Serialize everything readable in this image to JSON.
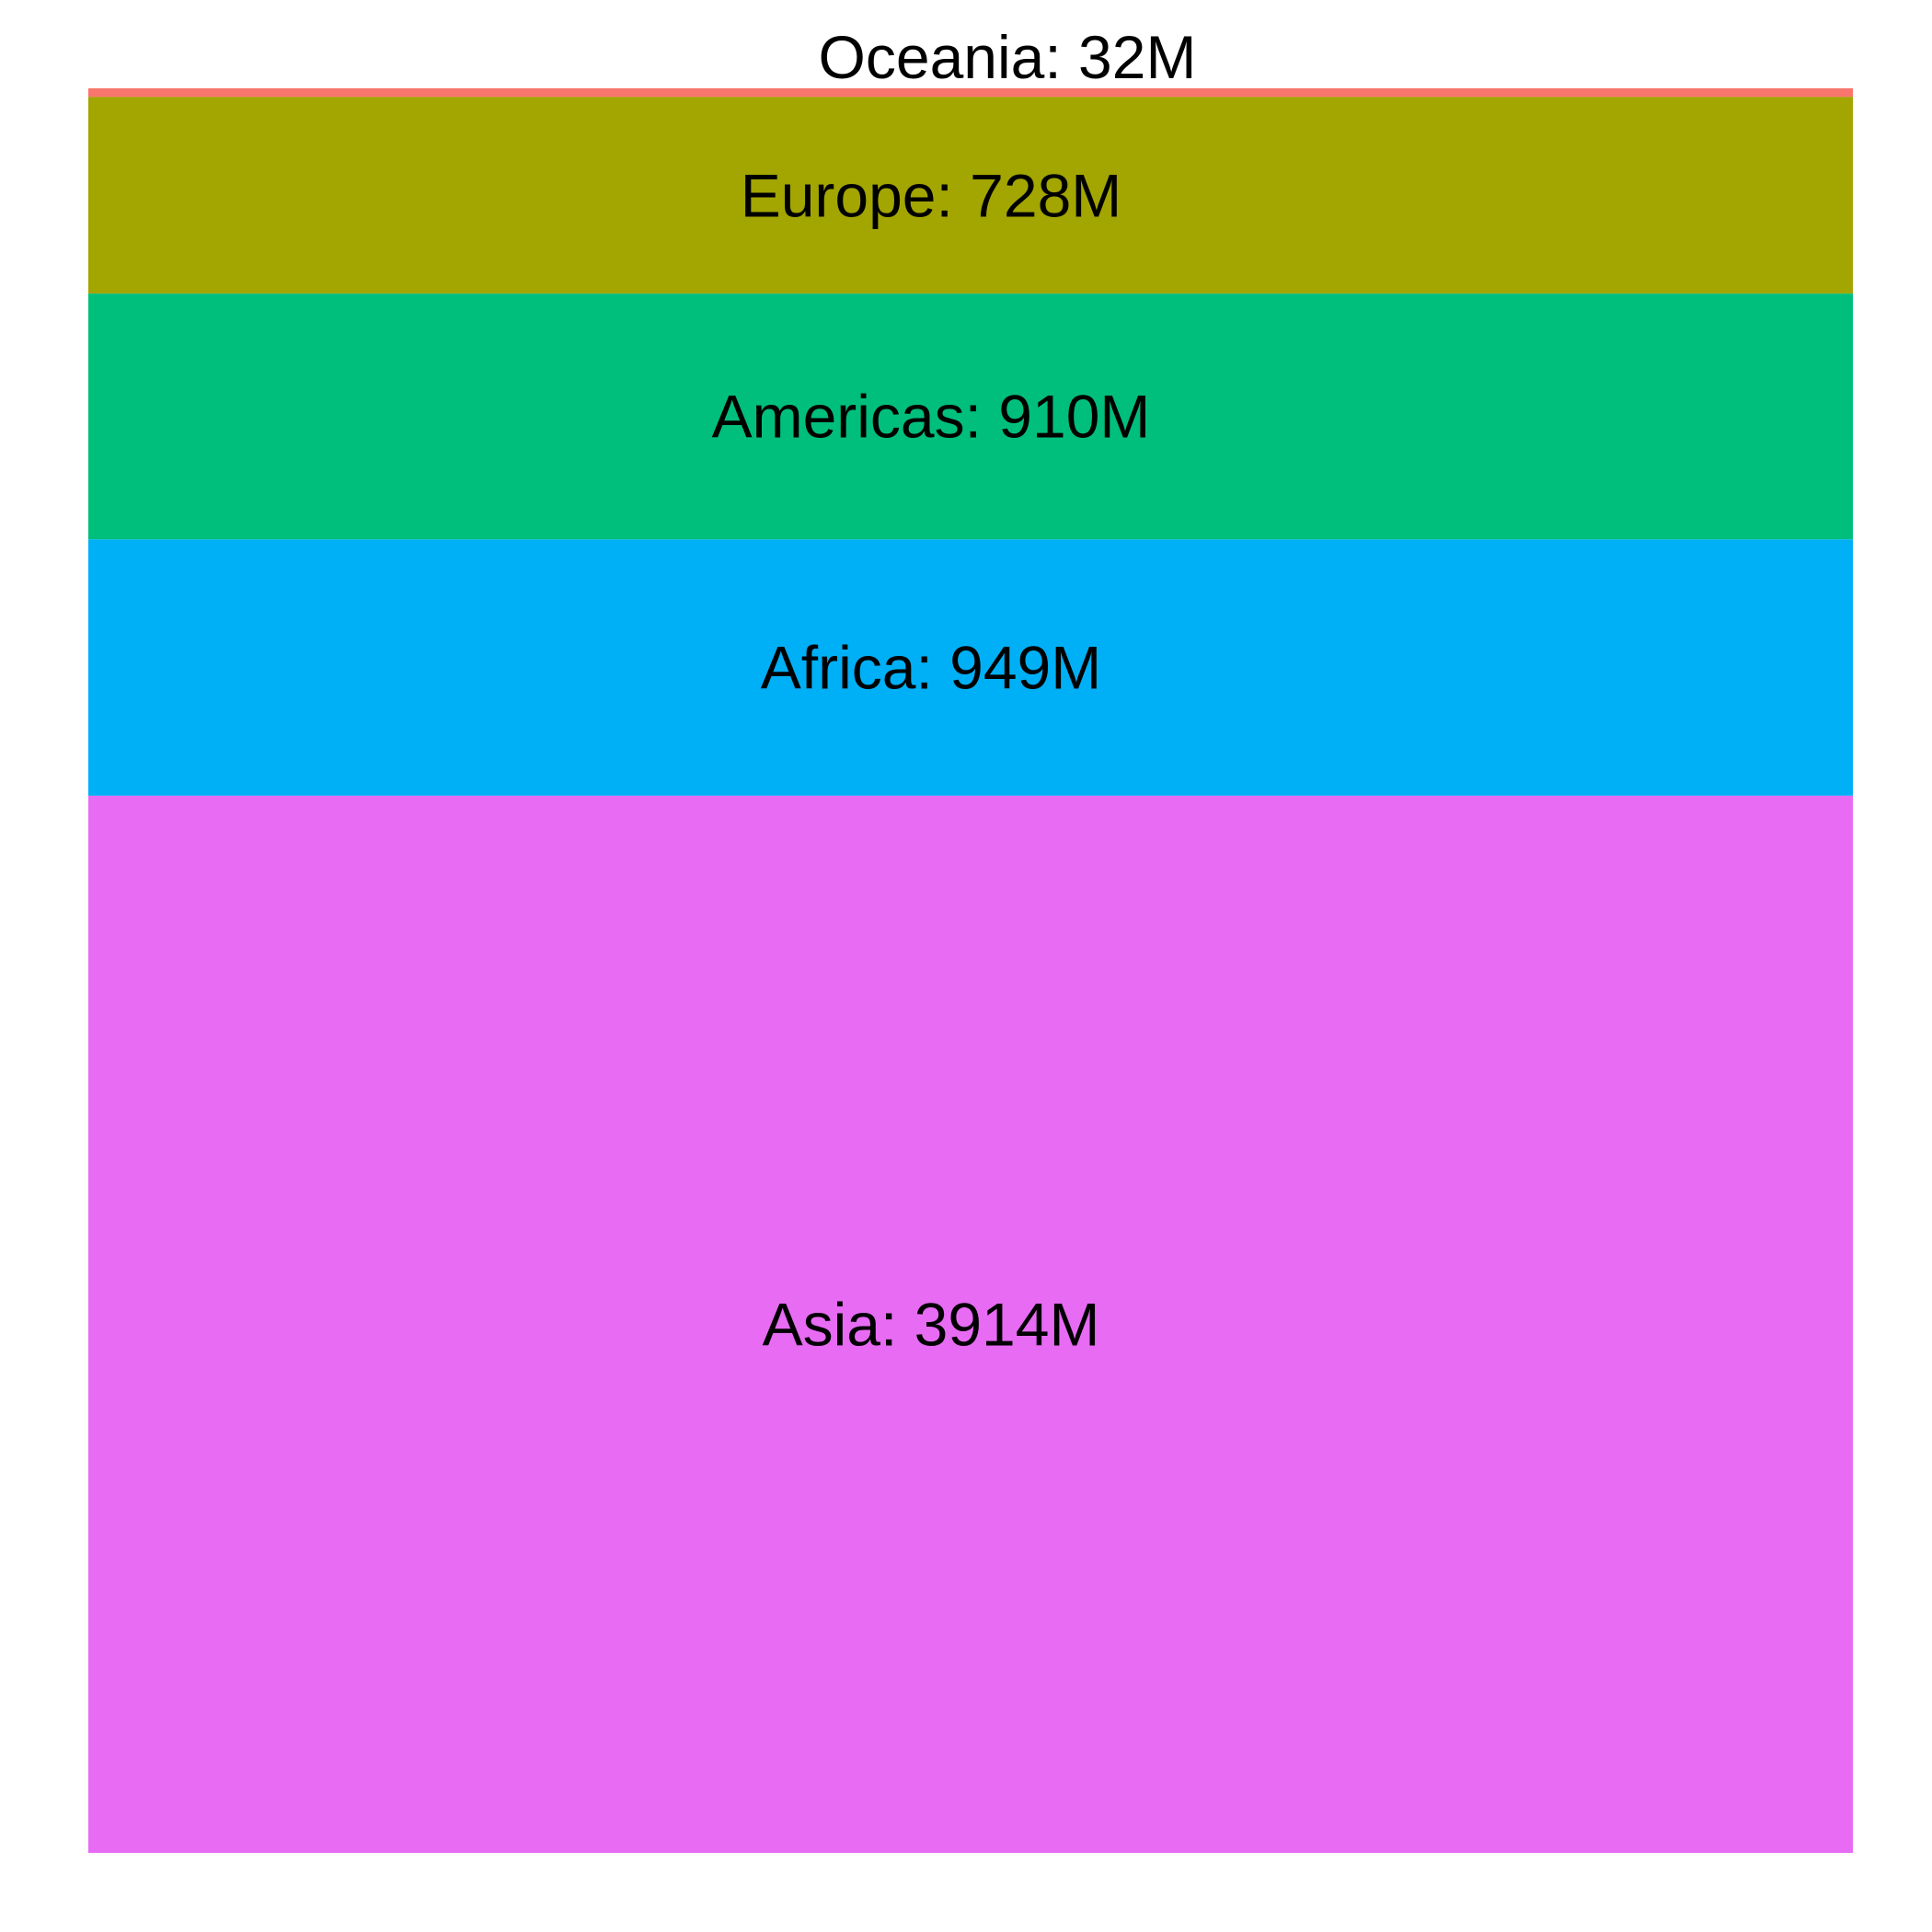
{
  "chart_data": {
    "type": "bar",
    "stacked": true,
    "orientation": "stacked-single-column",
    "categories": [
      "Oceania",
      "Europe",
      "Americas",
      "Africa",
      "Asia"
    ],
    "values": [
      32,
      728,
      910,
      949,
      3914
    ],
    "unit": "M",
    "labels": [
      "Oceania: 32M",
      "Europe: 728M",
      "Americas: 910M",
      "Africa: 949M",
      "Asia: 3914M"
    ],
    "colors": [
      "#F8766D",
      "#A3A500",
      "#00BF7D",
      "#00B0F6",
      "#E76BF3"
    ],
    "title": "",
    "xlabel": "",
    "ylabel": "",
    "axes_visible": false,
    "grid": false,
    "legend": "none"
  }
}
